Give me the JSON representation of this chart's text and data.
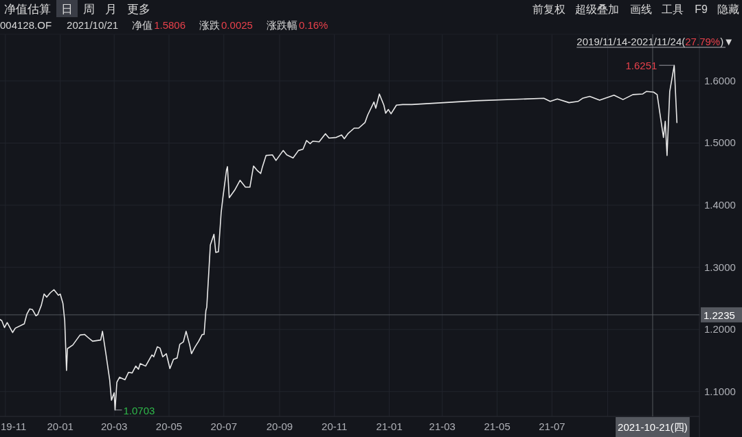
{
  "chart_data": {
    "type": "line",
    "title": "004128.OF",
    "annotations": [
      "净值估算",
      "日",
      "周",
      "月",
      "更多",
      "前复权",
      "超级叠加",
      "画线",
      "工具",
      "F9",
      "隐藏",
      "2021/10/21",
      "净值",
      "1.5806",
      "涨跌",
      "0.0025",
      "涨跌幅",
      "0.16%",
      "2019/11/14-2021/11/24(",
      "27.79%",
      ")▼",
      {
        "text": "1.6251",
        "x": "2021-11-14",
        "y": 1.6251
      },
      {
        "text": "1.0703",
        "x": "2020-03-02",
        "y": 1.0703
      }
    ],
    "x": [
      "2019-10-26",
      "2019-10-28",
      "2019-10-31",
      "2019-11-03",
      "2019-11-09",
      "2019-11-12",
      "2019-11-22",
      "2019-11-25",
      "2019-11-28",
      "2019-12-01",
      "2019-12-05",
      "2019-12-07",
      "2019-12-11",
      "2019-12-14",
      "2019-12-17",
      "2019-12-21",
      "2019-12-25",
      "2019-12-30",
      "2020-01-01",
      "2020-01-04",
      "2020-01-06",
      "2020-01-08",
      "2020-01-09",
      "2020-01-15",
      "2020-01-19",
      "2020-01-23",
      "2020-01-28",
      "2020-02-01",
      "2020-02-06",
      "2020-02-15",
      "2020-02-17",
      "2020-02-21",
      "2020-02-25",
      "2020-02-27",
      "2020-03-01",
      "2020-03-02",
      "2020-03-04",
      "2020-03-07",
      "2020-03-13",
      "2020-03-17",
      "2020-03-21",
      "2020-03-25",
      "2020-03-28",
      "2020-03-30",
      "2020-04-05",
      "2020-04-12",
      "2020-04-14",
      "2020-04-18",
      "2020-04-21",
      "2020-04-24",
      "2020-04-28",
      "2020-05-02",
      "2020-05-06",
      "2020-05-10",
      "2020-05-13",
      "2020-05-17",
      "2020-05-20",
      "2020-05-24",
      "2020-05-26",
      "2020-05-30",
      "2020-06-03",
      "2020-06-07",
      "2020-06-09",
      "2020-06-11",
      "2020-06-12",
      "2020-06-15",
      "2020-06-16",
      "2020-06-20",
      "2020-06-22",
      "2020-06-25",
      "2020-06-28",
      "2020-06-30",
      "2020-07-04",
      "2020-07-05",
      "2020-07-07",
      "2020-07-13",
      "2020-07-19",
      "2020-07-25",
      "2020-07-30",
      "2020-08-03",
      "2020-08-07",
      "2020-08-11",
      "2020-08-13",
      "2020-08-17",
      "2020-08-24",
      "2020-08-28",
      "2020-09-05",
      "2020-09-09",
      "2020-09-16",
      "2020-09-22",
      "2020-09-27",
      "2020-10-01",
      "2020-10-05",
      "2020-10-08",
      "2020-10-15",
      "2020-10-22",
      "2020-10-26",
      "2020-11-03",
      "2020-11-09",
      "2020-11-12",
      "2020-11-16",
      "2020-11-23",
      "2020-11-28",
      "2020-12-05",
      "2020-12-08",
      "2020-12-15",
      "2020-12-17",
      "2020-12-21",
      "2020-12-26",
      "2020-12-28",
      "2020-12-31",
      "2021-01-03",
      "2021-01-09",
      "2021-01-16",
      "2021-01-26",
      "2021-04-07",
      "2021-06-22",
      "2021-06-29",
      "2021-07-07",
      "2021-07-20",
      "2021-07-30",
      "2021-08-04",
      "2021-08-12",
      "2021-08-23",
      "2021-09-08",
      "2021-09-18",
      "2021-09-29",
      "2021-10-10",
      "2021-10-14",
      "2021-10-22",
      "2021-10-26",
      "2021-11-02",
      "2021-11-04",
      "2021-11-06",
      "2021-11-09",
      "2021-11-14",
      "2021-11-17"
    ],
    "series": [
      {
        "color": "#e8e8e8",
        "values": [
          1.216,
          1.214,
          1.203,
          1.211,
          1.195,
          1.202,
          1.209,
          1.225,
          1.233,
          1.232,
          1.222,
          1.224,
          1.239,
          1.257,
          1.252,
          1.259,
          1.264,
          1.255,
          1.257,
          1.242,
          1.214,
          1.134,
          1.169,
          1.175,
          1.183,
          1.191,
          1.192,
          1.187,
          1.181,
          1.183,
          1.197,
          1.159,
          1.119,
          1.086,
          1.098,
          1.0703,
          1.115,
          1.123,
          1.119,
          1.131,
          1.13,
          1.141,
          1.136,
          1.145,
          1.141,
          1.159,
          1.156,
          1.172,
          1.17,
          1.156,
          1.161,
          1.137,
          1.152,
          1.154,
          1.176,
          1.18,
          1.197,
          1.175,
          1.161,
          1.172,
          1.181,
          1.192,
          1.192,
          1.23,
          1.236,
          1.311,
          1.336,
          1.353,
          1.324,
          1.325,
          1.388,
          1.413,
          1.457,
          1.462,
          1.412,
          1.424,
          1.44,
          1.429,
          1.429,
          1.463,
          1.456,
          1.451,
          1.462,
          1.48,
          1.481,
          1.472,
          1.488,
          1.481,
          1.476,
          1.488,
          1.49,
          1.504,
          1.499,
          1.503,
          1.502,
          1.515,
          1.508,
          1.509,
          1.513,
          1.507,
          1.515,
          1.524,
          1.524,
          1.533,
          1.545,
          1.566,
          1.556,
          1.579,
          1.561,
          1.548,
          1.554,
          1.547,
          1.561,
          1.562,
          1.562,
          1.568,
          1.572,
          1.567,
          1.571,
          1.565,
          1.567,
          1.572,
          1.575,
          1.569,
          1.577,
          1.57,
          1.578,
          1.579,
          1.583,
          1.582,
          1.578,
          1.509,
          1.535,
          1.48,
          1.583,
          1.6251,
          1.533
        ]
      }
    ],
    "xlim": [
      "2019-10-26",
      "2021-12-12"
    ],
    "ylim": [
      1.06,
      1.675
    ],
    "xticks": [
      {
        "value": "2019-11-01",
        "label": "19-11"
      },
      {
        "value": "2020-01-01",
        "label": "20-01"
      },
      {
        "value": "2020-03-01",
        "label": "20-03"
      },
      {
        "value": "2020-05-01",
        "label": "20-05"
      },
      {
        "value": "2020-07-01",
        "label": "20-07"
      },
      {
        "value": "2020-09-01",
        "label": "20-09"
      },
      {
        "value": "2020-11-01",
        "label": "20-11"
      },
      {
        "value": "2021-01-01",
        "label": "21-01"
      },
      {
        "value": "2021-03-01",
        "label": "21-03"
      },
      {
        "value": "2021-05-01",
        "label": "21-05"
      },
      {
        "value": "2021-07-01",
        "label": "21-07"
      },
      {
        "value": "2021-09-01",
        "label": null
      }
    ],
    "yticks": [
      {
        "value": 1.1,
        "label": "1.1000"
      },
      {
        "value": 1.2,
        "label": "1.2000"
      },
      {
        "value": 1.3,
        "label": "1.3000"
      },
      {
        "value": 1.4,
        "label": "1.4000"
      },
      {
        "value": 1.5,
        "label": "1.5000"
      },
      {
        "value": 1.6,
        "label": "1.6000"
      }
    ],
    "ref_lines": [
      {
        "axis": "y",
        "value": 1.2235,
        "label": "1.2235"
      },
      {
        "axis": "x",
        "value": "2021-10-21",
        "label": "2021-10-21(四)"
      }
    ],
    "grid": true
  }
}
